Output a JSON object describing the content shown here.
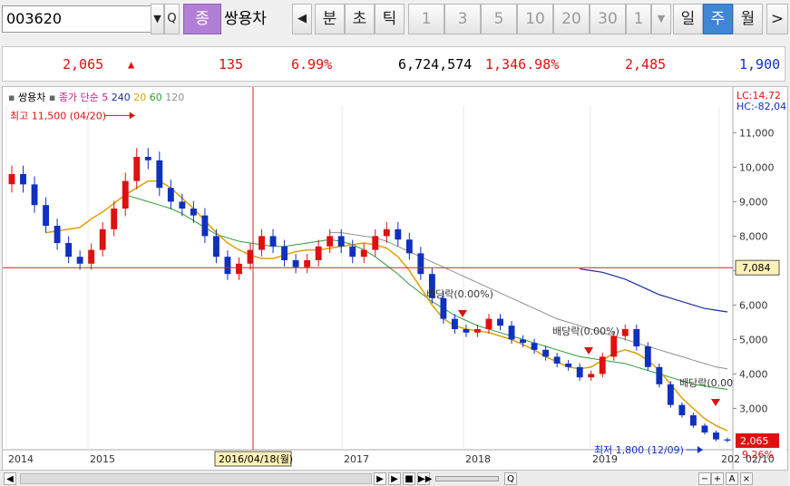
{
  "toolbar": {
    "stock_code": "003620",
    "type_label": "종",
    "stock_name": "쌍용차",
    "period_buttons": [
      "분",
      "초",
      "틱",
      "1",
      "3",
      "5",
      "10",
      "20",
      "30",
      "1",
      "일",
      "주",
      "월"
    ],
    "active_period": "주"
  },
  "quote": {
    "price": "2,065",
    "change_symbol": "▲",
    "change": "135",
    "change_rate": "6.99%",
    "volume": "6,724,574",
    "volume_rate": "1,346.98%",
    "high": "2,485",
    "low": "1,900"
  },
  "legend": {
    "stock": "쌍용차",
    "ma_label": "종가 단순",
    "ma5": "5",
    "ma240": "240",
    "ma20": "20",
    "ma60": "60",
    "ma120": "120"
  },
  "corner": {
    "lc": "LC:14,72",
    "hc": "HC:-82,04"
  },
  "annotations": {
    "high": "최고 11,500 (04/20)",
    "low": "최저 1,800 (12/09)",
    "div1": "배당락(0.00%)",
    "div2": "배당락(0.00%)",
    "div3": "배당락(0.00"
  },
  "crosshair": {
    "date": "2016/04/18(월)",
    "price": "7,084"
  },
  "current": {
    "price": "2,065",
    "rate": "9.26%"
  },
  "colors": {
    "up": "#e01010",
    "down": "#1030c0",
    "ma5": "#1030c0",
    "ma20": "#e0a000",
    "ma60": "#2e9e3a",
    "ma120": "#909090",
    "ma240": "#1a2f9a",
    "crosshair": "#d62020"
  },
  "chart_data": {
    "type": "candlestick",
    "x": [
      "2014",
      "2015",
      "2017",
      "2018",
      "2019",
      "202"
    ],
    "y_ticks": [
      "11,000",
      "10,000",
      "9,000",
      "8,000",
      "7,000",
      "6,000",
      "5,000",
      "4,000",
      "3,000"
    ],
    "ylim": [
      1800,
      11800
    ],
    "last_label": "02/10",
    "close_series": [
      9800,
      9500,
      8900,
      8300,
      7800,
      7400,
      7200,
      7600,
      8200,
      8800,
      9600,
      10300,
      10200,
      9400,
      9000,
      8800,
      8600,
      8000,
      7400,
      6900,
      7200,
      7600,
      8000,
      7700,
      7300,
      7100,
      7300,
      7700,
      8000,
      7700,
      7400,
      7600,
      8000,
      8200,
      7900,
      7500,
      6900,
      6200,
      5600,
      5300,
      5200,
      5300,
      5600,
      5400,
      5000,
      4900,
      4700,
      4500,
      4300,
      4200,
      3900,
      4000,
      4500,
      5100,
      5300,
      4800,
      4200,
      3700,
      3100,
      2800,
      2500,
      2300,
      2100,
      2065
    ],
    "ma5": [
      9700,
      9550,
      9200,
      8700,
      8200,
      7800,
      7450,
      7400,
      7700,
      8200,
      8900,
      9600,
      10000,
      9800,
      9400,
      9100,
      8850,
      8500,
      7950,
      7400,
      7150,
      7300,
      7600,
      7700,
      7450,
      7250,
      7250,
      7500,
      7750,
      7750,
      7550,
      7550,
      7800,
      8050,
      7950,
      7650,
      7200,
      6600,
      5950,
      5500,
      5300,
      5250,
      5400,
      5400,
      5200,
      5000,
      4800,
      4600,
      4400,
      4250,
      4050,
      4050,
      4300,
      4750,
      5100,
      4950,
      4500,
      4000,
      3450,
      3000,
      2650,
      2400,
      2200,
      2150
    ],
    "ma20": [
      null,
      null,
      null,
      8100,
      8150,
      8200,
      8250,
      8500,
      8700,
      8950,
      9200,
      9400,
      9600,
      9600,
      9400,
      9100,
      8800,
      8450,
      8100,
      7800,
      7600,
      7450,
      7350,
      7350,
      7450,
      7550,
      7600,
      7600,
      7650,
      7700,
      7750,
      7800,
      7750,
      7650,
      7400,
      7000,
      6500,
      6000,
      5600,
      5400,
      5300,
      5250,
      5200,
      5100,
      5000,
      4850,
      4700,
      4500,
      4350,
      4200,
      4150,
      4200,
      4400,
      4600,
      4700,
      4600,
      4400,
      4100,
      3700,
      3300,
      3000,
      2700,
      2500,
      2350
    ],
    "ma60": [
      null,
      null,
      null,
      null,
      null,
      null,
      null,
      null,
      null,
      null,
      9200,
      9100,
      9000,
      8900,
      8800,
      8650,
      8450,
      8250,
      8050,
      7950,
      7850,
      7800,
      7750,
      7700,
      7700,
      7750,
      7800,
      7850,
      7900,
      7850,
      7750,
      7600,
      7400,
      7150,
      6900,
      6600,
      6350,
      6100,
      5900,
      5700,
      5550,
      5400,
      5300,
      5200,
      5100,
      5000,
      4900,
      4800,
      4700,
      4600,
      4500,
      4450,
      4400,
      4350,
      4300,
      4200,
      4100,
      4000,
      3900,
      3800,
      3700,
      3650,
      3600,
      3550
    ],
    "ma120": [
      null,
      null,
      null,
      null,
      null,
      null,
      null,
      null,
      null,
      null,
      null,
      null,
      null,
      null,
      null,
      null,
      null,
      null,
      null,
      null,
      null,
      null,
      null,
      null,
      null,
      null,
      null,
      null,
      8100,
      8100,
      8050,
      8000,
      7950,
      7850,
      7700,
      7550,
      7400,
      7250,
      7100,
      6950,
      6800,
      6650,
      6500,
      6350,
      6200,
      6050,
      5900,
      5750,
      5600,
      5500,
      5400,
      5300,
      5200,
      5100,
      5000,
      4900,
      4800,
      4700,
      4600,
      4500,
      4400,
      4300,
      4200,
      4150
    ],
    "ma240": [
      null,
      null,
      null,
      null,
      null,
      null,
      null,
      null,
      null,
      null,
      null,
      null,
      null,
      null,
      null,
      null,
      null,
      null,
      null,
      null,
      null,
      null,
      null,
      null,
      null,
      null,
      null,
      null,
      null,
      null,
      null,
      null,
      null,
      null,
      null,
      null,
      null,
      null,
      null,
      null,
      null,
      null,
      null,
      null,
      null,
      null,
      null,
      null,
      null,
      null,
      7050,
      7000,
      6950,
      6850,
      6750,
      6600,
      6450,
      6300,
      6200,
      6100,
      6000,
      5900,
      5850,
      5800
    ],
    "highs": [
      {
        "label": "최고 11,500 (04/20)",
        "value": 11500
      }
    ],
    "lows": [
      {
        "label": "최저 1,800 (12/09)",
        "value": 1800
      }
    ]
  },
  "bottom_bar": {
    "buttons": [
      "◀",
      "▶",
      "■",
      "▶▶",
      "Q",
      "−",
      "+",
      "A",
      "×"
    ]
  }
}
